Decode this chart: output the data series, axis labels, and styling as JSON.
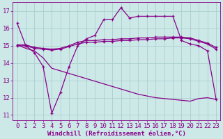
{
  "background_color": "#cce9e8",
  "grid_color": "#aacfce",
  "line_color": "#880088",
  "xlabel": "Windchill (Refroidissement éolien,°C)",
  "xlim": [
    -0.5,
    23.5
  ],
  "ylim": [
    10.7,
    17.5
  ],
  "yticks": [
    11,
    12,
    13,
    14,
    15,
    16,
    17
  ],
  "xticks": [
    0,
    1,
    2,
    3,
    4,
    5,
    6,
    7,
    8,
    9,
    10,
    11,
    12,
    13,
    14,
    15,
    16,
    17,
    18,
    19,
    20,
    21,
    22,
    23
  ],
  "series1_x": [
    0,
    1,
    2,
    3,
    4,
    5,
    6,
    7,
    8,
    9,
    10,
    11,
    12,
    13,
    14,
    15,
    16,
    17,
    18,
    19,
    20,
    21,
    22,
    23
  ],
  "series1_y": [
    16.3,
    15.0,
    14.6,
    13.8,
    11.1,
    12.3,
    13.8,
    15.0,
    15.4,
    15.6,
    16.5,
    16.5,
    17.2,
    16.6,
    16.7,
    16.7,
    16.7,
    16.7,
    16.7,
    15.3,
    15.1,
    15.0,
    14.7,
    11.9
  ],
  "series2_x": [
    0,
    1,
    2,
    3,
    4,
    5,
    6,
    7,
    8,
    9,
    10,
    11,
    12,
    13,
    14,
    15,
    16,
    17,
    18,
    19,
    20,
    21,
    22,
    23
  ],
  "series2_y": [
    15.05,
    15.05,
    14.9,
    14.85,
    14.8,
    14.85,
    15.0,
    15.2,
    15.3,
    15.3,
    15.35,
    15.35,
    15.4,
    15.4,
    15.45,
    15.45,
    15.5,
    15.5,
    15.5,
    15.5,
    15.45,
    15.3,
    15.15,
    14.9
  ],
  "series3_x": [
    0,
    1,
    2,
    3,
    4,
    5,
    6,
    7,
    8,
    9,
    10,
    11,
    12,
    13,
    14,
    15,
    16,
    17,
    18,
    19,
    20,
    21,
    22,
    23
  ],
  "series3_y": [
    15.0,
    15.0,
    14.85,
    14.8,
    14.75,
    14.8,
    14.95,
    15.1,
    15.2,
    15.2,
    15.25,
    15.25,
    15.3,
    15.3,
    15.35,
    15.35,
    15.4,
    15.4,
    15.45,
    15.45,
    15.4,
    15.25,
    15.1,
    14.8
  ],
  "series4_x": [
    0,
    1,
    2,
    3,
    4,
    5,
    6,
    7,
    8,
    9,
    10,
    11,
    12,
    13,
    14,
    15,
    16,
    17,
    18,
    19,
    20,
    21,
    22,
    23
  ],
  "series4_y": [
    15.05,
    14.85,
    14.7,
    14.3,
    13.7,
    13.55,
    13.4,
    13.25,
    13.1,
    12.95,
    12.8,
    12.65,
    12.5,
    12.35,
    12.2,
    12.1,
    12.0,
    11.95,
    11.9,
    11.85,
    11.8,
    11.95,
    12.0,
    11.9
  ],
  "font_size": 6.5
}
